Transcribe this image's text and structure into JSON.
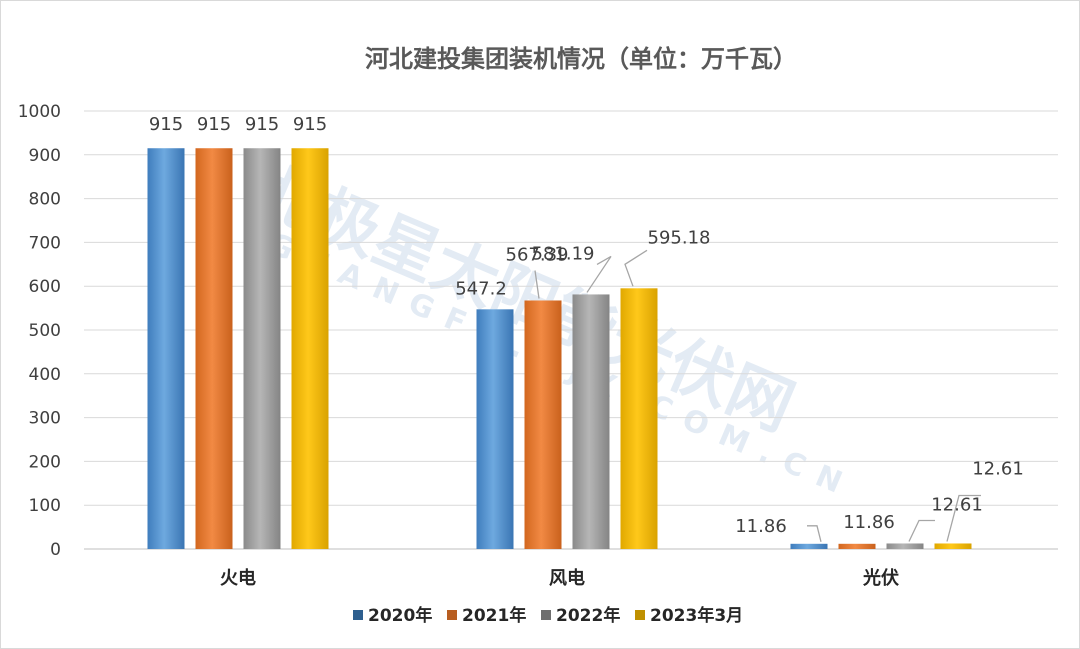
{
  "chart_data": {
    "type": "bar",
    "title": "河北建投集团装机情况（单位：万千瓦）",
    "categories": [
      "火电",
      "风电",
      "光伏"
    ],
    "series": [
      {
        "name": "2020年",
        "values": [
          915,
          547.2,
          11.86
        ]
      },
      {
        "name": "2021年",
        "values": [
          915,
          567.39,
          11.86
        ]
      },
      {
        "name": "2022年",
        "values": [
          915,
          581.19,
          12.61
        ]
      },
      {
        "name": "2023年3月",
        "values": [
          915,
          595.18,
          12.61
        ]
      }
    ],
    "data_labels": [
      [
        "915",
        "547.2",
        "11.86"
      ],
      [
        "915",
        "567.39",
        "11.86"
      ],
      [
        "915",
        "581.19",
        "12.61"
      ],
      [
        "915",
        "595.18",
        "12.61"
      ]
    ],
    "ylim": [
      0,
      1000
    ],
    "yticks": [
      0,
      100,
      200,
      300,
      400,
      500,
      600,
      700,
      800,
      900,
      1000
    ],
    "grid": true,
    "legend_position": "bottom",
    "colors": [
      "#5b9bd5",
      "#ed7d31",
      "#a5a5a5",
      "#ffc000"
    ],
    "legend_colors": [
      "#2e5f8f",
      "#b85e21",
      "#6e6e6e",
      "#bf9000"
    ],
    "watermark": {
      "line1": "北极星太阳能光伏网",
      "line2": "GUANGFU.BJX.COM.CN"
    }
  }
}
